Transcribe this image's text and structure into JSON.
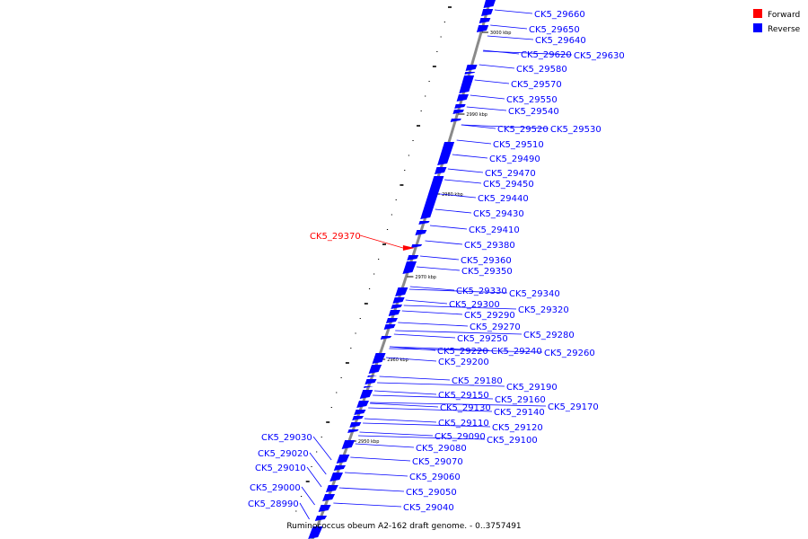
{
  "caption": "Ruminococcus obeum A2-162 draft genome. - 0..3757491",
  "legend": [
    {
      "label": "Forward",
      "color": "#ff0000"
    },
    {
      "label": "Reverse",
      "color": "#0000ff"
    }
  ],
  "colors": {
    "forward": "#ff0000",
    "reverse": "#0000ff",
    "backbone": "#8a8a8a"
  },
  "kbp_marks": [
    "3000 kbp",
    "2990 kbp",
    "2980 kbp",
    "2970 kbp",
    "2960 kbp",
    "2950 kbp"
  ],
  "genes": [
    {
      "name": "CK5_29660",
      "strand": "reverse"
    },
    {
      "name": "CK5_29650",
      "strand": "reverse"
    },
    {
      "name": "CK5_29640",
      "strand": "reverse"
    },
    {
      "name": "CK5_29620",
      "strand": "reverse"
    },
    {
      "name": "CK5_29630",
      "strand": "reverse"
    },
    {
      "name": "CK5_29580",
      "strand": "reverse"
    },
    {
      "name": "CK5_29570",
      "strand": "reverse"
    },
    {
      "name": "CK5_29550",
      "strand": "reverse"
    },
    {
      "name": "CK5_29540",
      "strand": "reverse"
    },
    {
      "name": "CK5_29520",
      "strand": "reverse"
    },
    {
      "name": "CK5_29530",
      "strand": "reverse"
    },
    {
      "name": "CK5_29510",
      "strand": "reverse"
    },
    {
      "name": "CK5_29490",
      "strand": "reverse"
    },
    {
      "name": "CK5_29470",
      "strand": "reverse"
    },
    {
      "name": "CK5_29450",
      "strand": "reverse"
    },
    {
      "name": "CK5_29440",
      "strand": "reverse"
    },
    {
      "name": "CK5_29430",
      "strand": "reverse"
    },
    {
      "name": "CK5_29410",
      "strand": "reverse"
    },
    {
      "name": "CK5_29380",
      "strand": "reverse"
    },
    {
      "name": "CK5_29370",
      "strand": "forward"
    },
    {
      "name": "CK5_29360",
      "strand": "reverse"
    },
    {
      "name": "CK5_29350",
      "strand": "reverse"
    },
    {
      "name": "CK5_29330",
      "strand": "reverse"
    },
    {
      "name": "CK5_29340",
      "strand": "reverse"
    },
    {
      "name": "CK5_29300",
      "strand": "reverse"
    },
    {
      "name": "CK5_29320",
      "strand": "reverse"
    },
    {
      "name": "CK5_29290",
      "strand": "reverse"
    },
    {
      "name": "CK5_29270",
      "strand": "reverse"
    },
    {
      "name": "CK5_29280",
      "strand": "reverse"
    },
    {
      "name": "CK5_29250",
      "strand": "reverse"
    },
    {
      "name": "CK5_29220",
      "strand": "reverse"
    },
    {
      "name": "CK5_29240",
      "strand": "reverse"
    },
    {
      "name": "CK5_29260",
      "strand": "reverse"
    },
    {
      "name": "CK5_29200",
      "strand": "reverse"
    },
    {
      "name": "CK5_29180",
      "strand": "reverse"
    },
    {
      "name": "CK5_29190",
      "strand": "reverse"
    },
    {
      "name": "CK5_29150",
      "strand": "reverse"
    },
    {
      "name": "CK5_29160",
      "strand": "reverse"
    },
    {
      "name": "CK5_29170",
      "strand": "reverse"
    },
    {
      "name": "CK5_29130",
      "strand": "reverse"
    },
    {
      "name": "CK5_29140",
      "strand": "reverse"
    },
    {
      "name": "CK5_29110",
      "strand": "reverse"
    },
    {
      "name": "CK5_29120",
      "strand": "reverse"
    },
    {
      "name": "CK5_29090",
      "strand": "reverse"
    },
    {
      "name": "CK5_29100",
      "strand": "reverse"
    },
    {
      "name": "CK5_29080",
      "strand": "reverse"
    },
    {
      "name": "CK5_29070",
      "strand": "reverse"
    },
    {
      "name": "CK5_29060",
      "strand": "reverse"
    },
    {
      "name": "CK5_29050",
      "strand": "reverse"
    },
    {
      "name": "CK5_29040",
      "strand": "reverse"
    },
    {
      "name": "CK5_29030",
      "strand": "reverse"
    },
    {
      "name": "CK5_29020",
      "strand": "reverse"
    },
    {
      "name": "CK5_29010",
      "strand": "reverse"
    },
    {
      "name": "CK5_29000",
      "strand": "reverse"
    },
    {
      "name": "CK5_28990",
      "strand": "reverse"
    }
  ]
}
